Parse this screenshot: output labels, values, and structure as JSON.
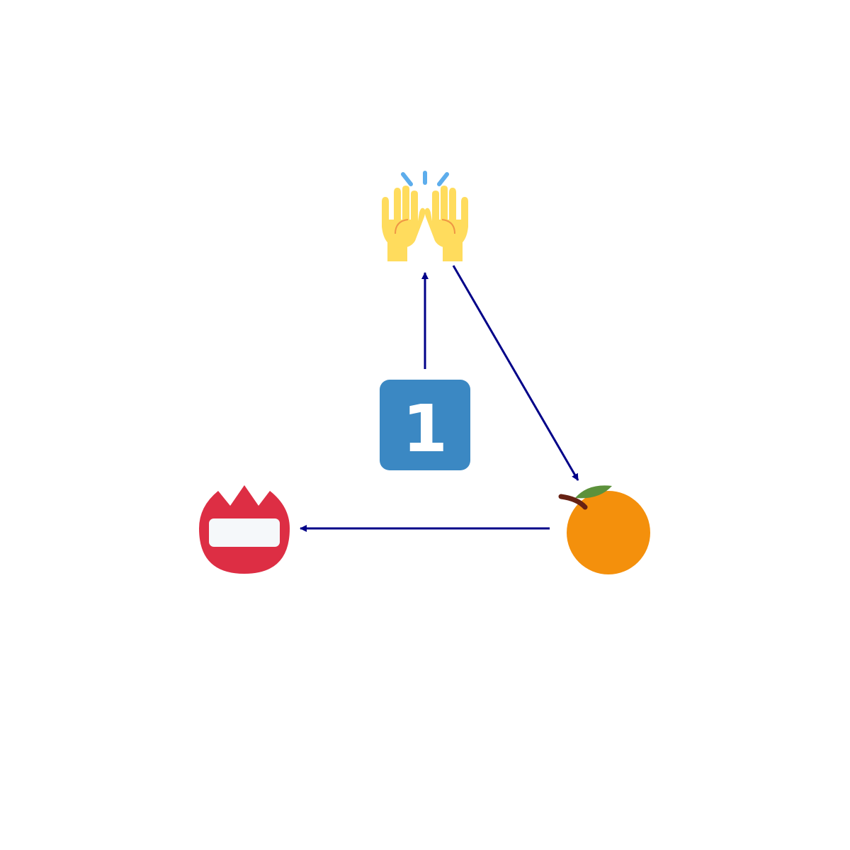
{
  "diagram": {
    "nodes": [
      {
        "id": "raising-hands",
        "icon": "raising-hands-icon"
      },
      {
        "id": "keycap-one",
        "icon": "keycap-digit-one-icon",
        "label": "1"
      },
      {
        "id": "tangerine",
        "icon": "tangerine-icon"
      },
      {
        "id": "name-badge",
        "icon": "name-badge-icon"
      }
    ],
    "edges": [
      {
        "from": "keycap-one",
        "to": "raising-hands"
      },
      {
        "from": "raising-hands",
        "to": "tangerine"
      },
      {
        "from": "tangerine",
        "to": "name-badge"
      }
    ],
    "colors": {
      "arrow": "#000088",
      "keycap": "#3B88C3",
      "keycap_text": "#FFFFFF",
      "hands": "#FFDC5D",
      "hands_lines": "#EF9645",
      "sparkle": "#5DADEC",
      "tangerine": "#F4900C",
      "leaf": "#5C913B",
      "stem": "#662113",
      "badge": "#DD2E44",
      "badge_label": "#F5F8FA"
    }
  }
}
